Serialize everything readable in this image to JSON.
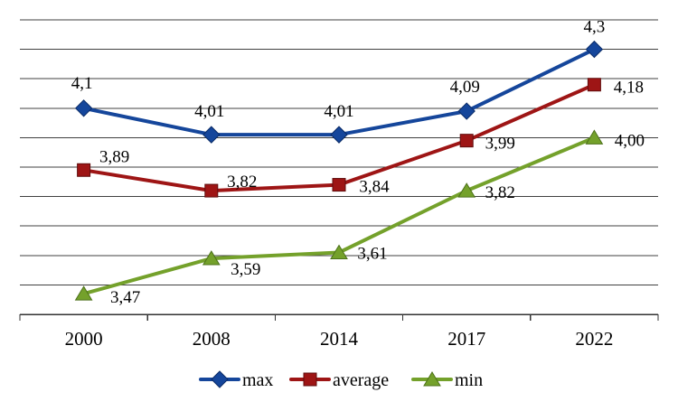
{
  "chart_data": {
    "type": "line",
    "title": "",
    "xlabel": "",
    "ylabel": "",
    "categories": [
      "2000",
      "2008",
      "2014",
      "2017",
      "2022"
    ],
    "series": [
      {
        "name": "max",
        "marker": "diamond",
        "color": "#15469B",
        "border_color": "#0A2B66",
        "values": [
          4.1,
          4.01,
          4.01,
          4.09,
          4.3
        ],
        "labels": [
          "4,1",
          "4,01",
          "4,01",
          "4,09",
          "4,3"
        ]
      },
      {
        "name": "average",
        "marker": "square",
        "color": "#9E1515",
        "border_color": "#5F0D0D",
        "values": [
          3.89,
          3.82,
          3.84,
          3.99,
          4.18
        ],
        "labels": [
          "3,89",
          "3,82",
          "3,84",
          "3,99",
          "4,18"
        ]
      },
      {
        "name": "min",
        "marker": "triangle",
        "color": "#74A12B",
        "border_color": "#4C711A",
        "values": [
          3.47,
          3.59,
          3.61,
          3.82,
          4.0
        ],
        "labels": [
          "3,47",
          "3,59",
          "3,61",
          "3,82",
          "4,00"
        ]
      }
    ],
    "ylim": [
      3.4,
      4.4
    ],
    "grid_step": 0.1,
    "grid": true,
    "y_tick_labels_shown": false,
    "decimal_separator": ",",
    "legend_position": "bottom",
    "legend_labels": [
      "max",
      "average",
      "min"
    ],
    "gridline_color": "#404040",
    "axis_color": "#333333",
    "label_offsets": [
      [
        [
          -2,
          -22
        ],
        [
          -2,
          -20
        ],
        [
          0,
          -20
        ],
        [
          -2,
          -21
        ],
        [
          0,
          -19
        ]
      ],
      [
        [
          34,
          -9
        ],
        [
          34,
          -4
        ],
        [
          39,
          8
        ],
        [
          37,
          9
        ],
        [
          38,
          9
        ]
      ],
      [
        [
          46,
          10
        ],
        [
          38,
          18
        ],
        [
          37,
          7
        ],
        [
          37,
          8
        ],
        [
          39,
          9
        ]
      ]
    ]
  }
}
